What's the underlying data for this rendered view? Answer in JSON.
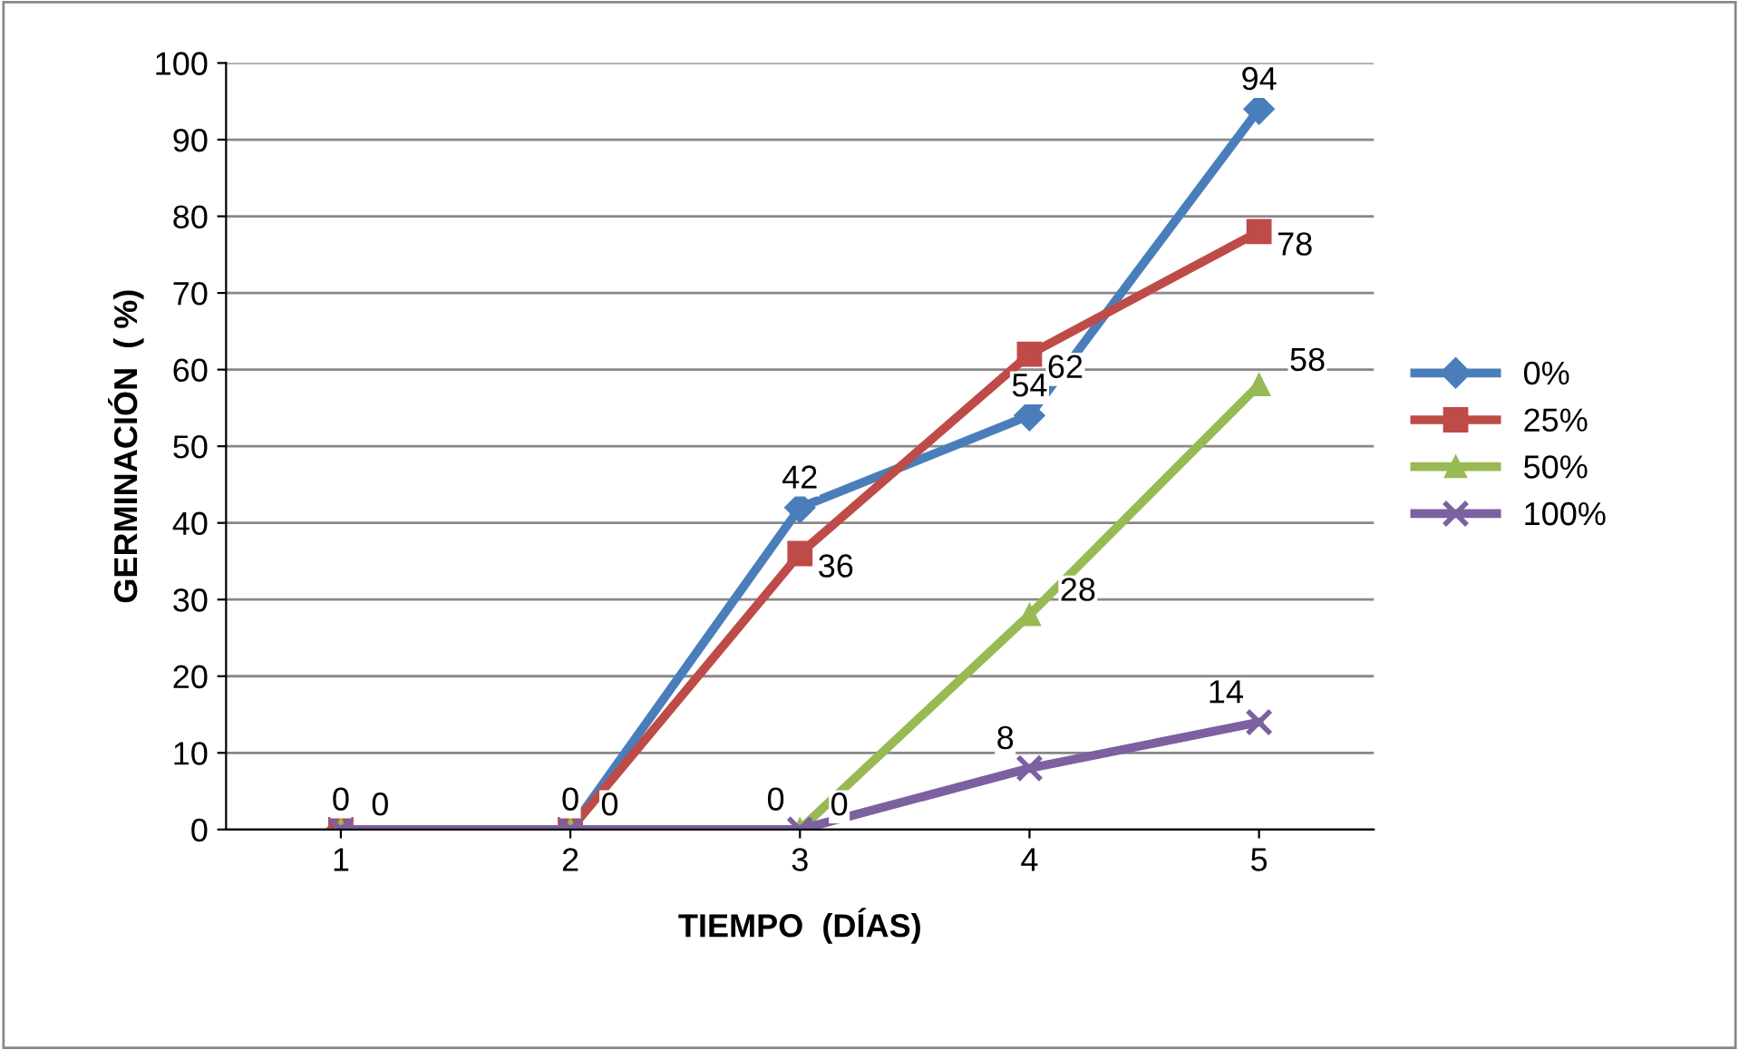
{
  "chart_data": {
    "type": "line",
    "xlabel": "TIEMPO  (DÍAS)",
    "ylabel": "GERMINACIÓN  ( %)",
    "categories": [
      "1",
      "2",
      "3",
      "4",
      "5"
    ],
    "series": [
      {
        "name": "0%",
        "color": "#4a7ebb",
        "marker": "diamond",
        "values": [
          0,
          0,
          42,
          54,
          94
        ],
        "value_labels": [
          "0",
          "0",
          "42",
          "54",
          "94"
        ]
      },
      {
        "name": "25%",
        "color": "#be4b48",
        "marker": "square",
        "values": [
          0,
          0,
          36,
          62,
          78
        ],
        "value_labels": [
          null,
          null,
          "36",
          "62",
          "78"
        ]
      },
      {
        "name": "50%",
        "color": "#98b954",
        "marker": "triangle",
        "values": [
          0,
          0,
          0,
          28,
          58
        ],
        "value_labels": [
          "0",
          "0",
          "0",
          "28",
          "58"
        ]
      },
      {
        "name": "100%",
        "color": "#7d60a0",
        "marker": "cross",
        "values": [
          0,
          0,
          0,
          8,
          14
        ],
        "value_labels": [
          null,
          null,
          "0",
          "8",
          "14"
        ]
      }
    ],
    "ylim": [
      0,
      100
    ],
    "yticks": [
      0,
      10,
      20,
      30,
      40,
      50,
      60,
      70,
      80,
      90,
      100
    ],
    "grid": "y",
    "legend": "right"
  }
}
